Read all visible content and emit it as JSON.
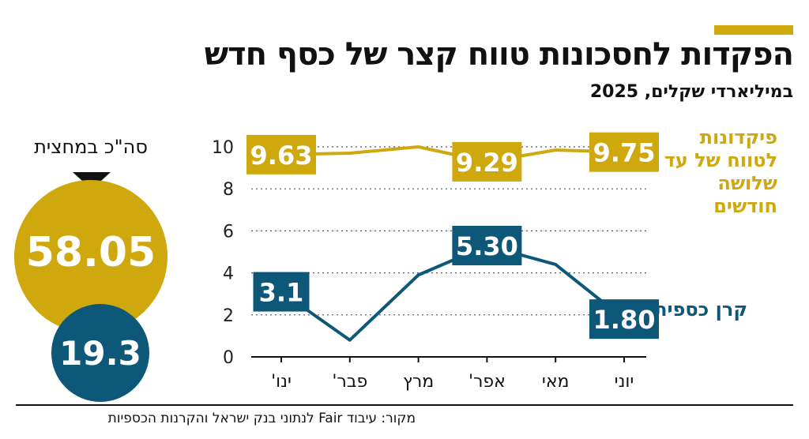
{
  "title": "הפקדות לחסכונות טווח קצר של כסף חדש",
  "subtitle": "במיליארדי שקלים, 2025",
  "average": {
    "label": "סה\"כ במחצית",
    "deposits_total": "58.05",
    "mmf_total": "19.3"
  },
  "legend": {
    "deposits": "פיקדונות לטווח של עד שלושה חודשים",
    "mmf": "קרן כספית"
  },
  "source": "מקור: עיבוד Fair לנתוני בנק ישראל והקרנות הכספיות",
  "colors": {
    "gold": "#cfa80d",
    "blue": "#0d5878"
  },
  "chart_data": {
    "type": "line",
    "categories": [
      "ינו'",
      "פבר'",
      "מרץ",
      "אפר'",
      "מאי",
      "יוני"
    ],
    "ylim": [
      0,
      10
    ],
    "yticks": [
      0,
      2,
      4,
      6,
      8,
      10
    ],
    "grid": true,
    "series": [
      {
        "name": "פיקדונות לטווח של עד שלושה חודשים",
        "color": "#cfa80d",
        "values": [
          9.63,
          9.7,
          10.0,
          9.29,
          9.85,
          9.75
        ],
        "labels": [
          {
            "index": 0,
            "text": "9.63"
          },
          {
            "index": 3,
            "text": "9.29"
          },
          {
            "index": 5,
            "text": "9.75"
          }
        ]
      },
      {
        "name": "קרן כספית",
        "color": "#0d5878",
        "values": [
          3.1,
          0.8,
          3.9,
          5.3,
          4.4,
          1.8
        ],
        "labels": [
          {
            "index": 0,
            "text": "3.1"
          },
          {
            "index": 3,
            "text": "5.30"
          },
          {
            "index": 5,
            "text": "1.80"
          }
        ]
      }
    ]
  }
}
